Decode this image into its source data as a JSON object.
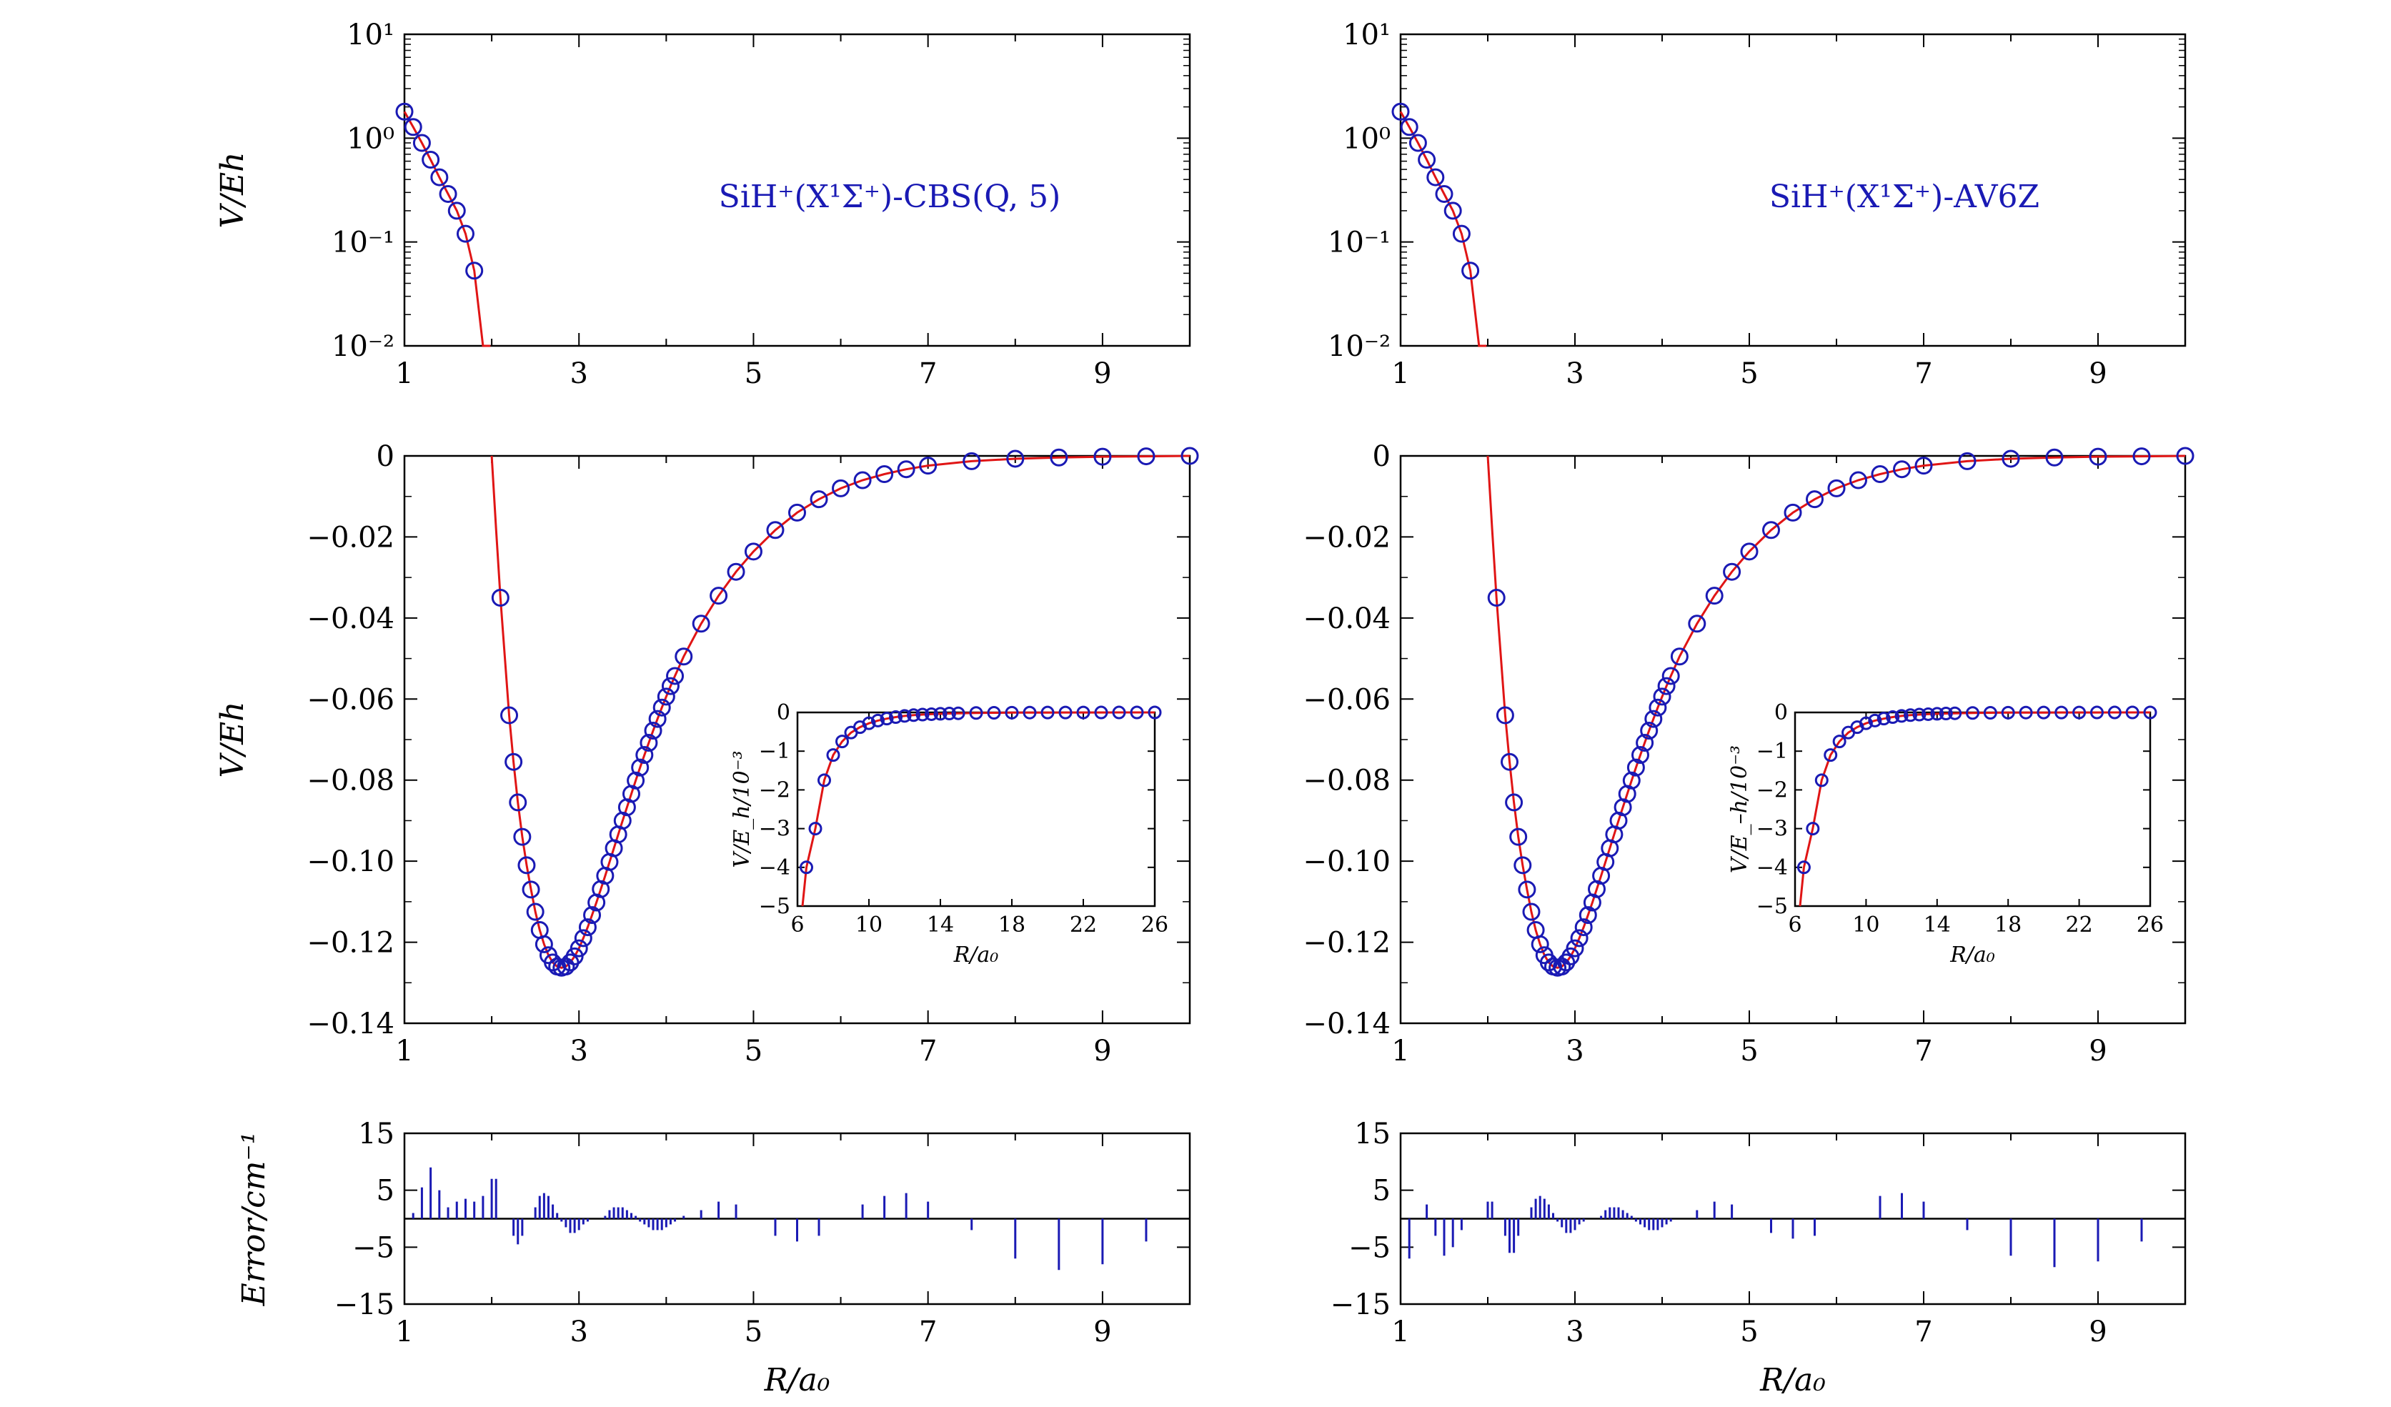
{
  "colors": {
    "curve": "#e01515",
    "points": "#1a1ab4",
    "error_bars": "#1a1ab4",
    "axes": "#000000"
  },
  "panels": [
    {
      "annotation": "SiH⁺(X¹Σ⁺)-CBS(Q, 5)"
    },
    {
      "annotation": "SiH⁺(X¹Σ⁺)-AV6Z"
    }
  ],
  "labels": {
    "top_ylabel": "V/E_h",
    "mid_ylabel": "V/E_h",
    "bottom_ylabel": "Error/cm⁻¹",
    "xlabel": "R/a₀",
    "inset_xlabel": "R/a₀",
    "inset_ylabel_left": "V/E_h/10⁻³",
    "inset_ylabel_right": "V/E_–h/10⁻³"
  },
  "ticks": {
    "main_x": [
      "1",
      "3",
      "5",
      "7",
      "9"
    ],
    "top_y": [
      "10¹",
      "10⁰",
      "10⁻¹",
      "10⁻²"
    ],
    "mid_y": [
      "0",
      "−0.02",
      "−0.04",
      "−0.06",
      "−0.08",
      "−0.10",
      "−0.12",
      "−0.14"
    ],
    "err_y": [
      "15",
      "5",
      "−5",
      "−15"
    ],
    "inset_x": [
      "6",
      "10",
      "14",
      "18",
      "22",
      "26"
    ],
    "inset_y": [
      "0",
      "−1",
      "−2",
      "−3",
      "−4",
      "−5"
    ]
  },
  "chart_data": [
    {
      "panel": "left-top",
      "type": "scatter",
      "title": "SiH⁺(X¹Σ⁺)-CBS(Q, 5)",
      "xlabel": "",
      "ylabel": "V/E_h",
      "xlim": [
        1,
        10
      ],
      "ylim": [
        0.01,
        10
      ],
      "yscale": "log",
      "x": [
        1.0,
        1.1,
        1.2,
        1.3,
        1.4,
        1.5,
        1.6,
        1.7,
        1.8,
        1.9
      ],
      "y": [
        1.8,
        1.28,
        0.9,
        0.62,
        0.42,
        0.29,
        0.2,
        0.12,
        0.053,
        0.01
      ]
    },
    {
      "panel": "left-middle",
      "type": "scatter",
      "xlabel": "",
      "ylabel": "V/E_h",
      "xlim": [
        1,
        10
      ],
      "ylim": [
        -0.14,
        0
      ],
      "x": [
        2.1,
        2.2,
        2.25,
        2.3,
        2.35,
        2.4,
        2.45,
        2.5,
        2.55,
        2.6,
        2.65,
        2.7,
        2.75,
        2.8,
        2.85,
        2.9,
        2.95,
        3.0,
        3.05,
        3.1,
        3.15,
        3.2,
        3.25,
        3.3,
        3.35,
        3.4,
        3.45,
        3.5,
        3.55,
        3.6,
        3.65,
        3.7,
        3.75,
        3.8,
        3.85,
        3.9,
        3.95,
        4.0,
        4.05,
        4.1,
        4.2,
        4.4,
        4.6,
        4.8,
        5.0,
        5.25,
        5.5,
        5.75,
        6.0,
        6.25,
        6.5,
        6.75,
        7.0,
        7.5,
        8.0,
        8.5,
        9.0,
        9.5,
        10.0
      ],
      "y": [
        -0.035,
        -0.064,
        -0.0755,
        -0.0855,
        -0.094,
        -0.101,
        -0.107,
        -0.1125,
        -0.117,
        -0.1205,
        -0.1232,
        -0.125,
        -0.126,
        -0.1263,
        -0.126,
        -0.125,
        -0.1235,
        -0.1215,
        -0.119,
        -0.1163,
        -0.1133,
        -0.1102,
        -0.1069,
        -0.1036,
        -0.1002,
        -0.0968,
        -0.0934,
        -0.09,
        -0.0867,
        -0.0834,
        -0.0801,
        -0.0769,
        -0.0738,
        -0.0708,
        -0.0678,
        -0.0649,
        -0.0621,
        -0.0594,
        -0.0568,
        -0.0543,
        -0.0495,
        -0.0414,
        -0.0345,
        -0.0286,
        -0.0236,
        -0.0183,
        -0.014,
        -0.0107,
        -0.008,
        -0.006,
        -0.0045,
        -0.0033,
        -0.0024,
        -0.0013,
        -0.0007,
        -0.0004,
        -0.0002,
        -0.0001,
        0.0
      ]
    },
    {
      "panel": "left-inset",
      "type": "scatter",
      "xlabel": "R/a₀",
      "ylabel": "V/E_h/10⁻³",
      "xlim": [
        6,
        26
      ],
      "ylim": [
        -5,
        0
      ],
      "x": [
        6.5,
        7.0,
        7.5,
        8.0,
        8.5,
        9.0,
        9.5,
        10.0,
        10.5,
        11.0,
        11.5,
        12.0,
        12.5,
        13.0,
        13.5,
        14.0,
        14.5,
        15.0,
        16.0,
        17.0,
        18.0,
        19.0,
        20.0,
        21.0,
        22.0,
        23.0,
        24.0,
        25.0,
        26.0
      ],
      "y": [
        -4.0,
        -3.0,
        -1.75,
        -1.1,
        -0.75,
        -0.52,
        -0.38,
        -0.28,
        -0.21,
        -0.16,
        -0.12,
        -0.09,
        -0.07,
        -0.055,
        -0.045,
        -0.035,
        -0.028,
        -0.022,
        -0.014,
        -0.009,
        -0.006,
        -0.004,
        -0.003,
        -0.002,
        -0.0015,
        -0.001,
        -0.0007,
        -0.0005,
        -0.0003
      ]
    },
    {
      "panel": "left-bottom",
      "type": "bar",
      "xlabel": "R/a₀",
      "ylabel": "Error/cm⁻¹",
      "xlim": [
        1,
        10
      ],
      "ylim": [
        -15,
        15
      ],
      "x": [
        1.1,
        1.2,
        1.3,
        1.4,
        1.5,
        1.6,
        1.7,
        1.8,
        1.9,
        2.0,
        2.05,
        2.25,
        2.3,
        2.35,
        2.5,
        2.55,
        2.6,
        2.65,
        2.7,
        2.75,
        2.8,
        2.85,
        2.9,
        2.95,
        3.0,
        3.05,
        3.1,
        3.3,
        3.35,
        3.4,
        3.45,
        3.5,
        3.55,
        3.6,
        3.65,
        3.7,
        3.75,
        3.8,
        3.85,
        3.9,
        3.95,
        4.0,
        4.05,
        4.1,
        4.2,
        4.4,
        4.6,
        4.8,
        5.25,
        5.5,
        5.75,
        6.25,
        6.5,
        6.75,
        7.0,
        7.5,
        8.0,
        8.5,
        9.0,
        9.5
      ],
      "y": [
        1,
        5.5,
        9,
        5,
        2,
        3,
        3.5,
        3,
        4,
        7,
        7,
        -3,
        -4.5,
        -3,
        2,
        4,
        4.5,
        4,
        2.5,
        1,
        -0.5,
        -1.5,
        -2.5,
        -2.5,
        -2,
        -1,
        -0.5,
        0.5,
        1.5,
        2,
        2,
        2,
        1.5,
        1,
        0.5,
        -0.5,
        -1,
        -1.5,
        -2,
        -2,
        -2,
        -1.5,
        -1,
        -0.5,
        0.5,
        1.5,
        3,
        2.5,
        -3,
        -4,
        -3,
        2.5,
        4,
        4.5,
        3,
        -2,
        -7,
        -9,
        -8,
        -4
      ]
    },
    {
      "panel": "right-top",
      "type": "scatter",
      "title": "SiH⁺(X¹Σ⁺)-AV6Z",
      "xlabel": "",
      "ylabel": "",
      "xlim": [
        1,
        10
      ],
      "ylim": [
        0.01,
        10
      ],
      "yscale": "log",
      "x": [
        1.0,
        1.1,
        1.2,
        1.3,
        1.4,
        1.5,
        1.6,
        1.7,
        1.8,
        1.9
      ],
      "y": [
        1.8,
        1.28,
        0.9,
        0.62,
        0.42,
        0.29,
        0.2,
        0.12,
        0.053,
        0.01
      ]
    },
    {
      "panel": "right-middle",
      "type": "scatter",
      "xlabel": "",
      "ylabel": "",
      "xlim": [
        1,
        10
      ],
      "ylim": [
        -0.14,
        0
      ],
      "x": [
        2.1,
        2.2,
        2.25,
        2.3,
        2.35,
        2.4,
        2.45,
        2.5,
        2.55,
        2.6,
        2.65,
        2.7,
        2.75,
        2.8,
        2.85,
        2.9,
        2.95,
        3.0,
        3.05,
        3.1,
        3.15,
        3.2,
        3.25,
        3.3,
        3.35,
        3.4,
        3.45,
        3.5,
        3.55,
        3.6,
        3.65,
        3.7,
        3.75,
        3.8,
        3.85,
        3.9,
        3.95,
        4.0,
        4.05,
        4.1,
        4.2,
        4.4,
        4.6,
        4.8,
        5.0,
        5.25,
        5.5,
        5.75,
        6.0,
        6.25,
        6.5,
        6.75,
        7.0,
        7.5,
        8.0,
        8.5,
        9.0,
        9.5,
        10.0
      ],
      "y": [
        -0.035,
        -0.064,
        -0.0755,
        -0.0855,
        -0.094,
        -0.101,
        -0.107,
        -0.1125,
        -0.117,
        -0.1205,
        -0.1232,
        -0.125,
        -0.126,
        -0.1263,
        -0.126,
        -0.125,
        -0.1235,
        -0.1215,
        -0.119,
        -0.1163,
        -0.1133,
        -0.1102,
        -0.1069,
        -0.1036,
        -0.1002,
        -0.0968,
        -0.0934,
        -0.09,
        -0.0867,
        -0.0834,
        -0.0801,
        -0.0769,
        -0.0738,
        -0.0708,
        -0.0678,
        -0.0649,
        -0.0621,
        -0.0594,
        -0.0568,
        -0.0543,
        -0.0495,
        -0.0414,
        -0.0345,
        -0.0286,
        -0.0236,
        -0.0183,
        -0.014,
        -0.0107,
        -0.008,
        -0.006,
        -0.0045,
        -0.0033,
        -0.0024,
        -0.0013,
        -0.0007,
        -0.0004,
        -0.0002,
        -0.0001,
        0.0
      ]
    },
    {
      "panel": "right-inset",
      "type": "scatter",
      "xlabel": "R/a₀",
      "ylabel": "V/E_–h/10⁻³",
      "xlim": [
        6,
        26
      ],
      "ylim": [
        -5,
        0
      ],
      "x": [
        6.5,
        7.0,
        7.5,
        8.0,
        8.5,
        9.0,
        9.5,
        10.0,
        10.5,
        11.0,
        11.5,
        12.0,
        12.5,
        13.0,
        13.5,
        14.0,
        14.5,
        15.0,
        16.0,
        17.0,
        18.0,
        19.0,
        20.0,
        21.0,
        22.0,
        23.0,
        24.0,
        25.0,
        26.0
      ],
      "y": [
        -4.0,
        -3.0,
        -1.75,
        -1.1,
        -0.75,
        -0.52,
        -0.38,
        -0.28,
        -0.21,
        -0.16,
        -0.12,
        -0.09,
        -0.07,
        -0.055,
        -0.045,
        -0.035,
        -0.028,
        -0.022,
        -0.014,
        -0.009,
        -0.006,
        -0.004,
        -0.003,
        -0.002,
        -0.0015,
        -0.001,
        -0.0007,
        -0.0005,
        -0.0003
      ]
    },
    {
      "panel": "right-bottom",
      "type": "bar",
      "xlabel": "R/a₀",
      "ylabel": "",
      "xlim": [
        1,
        10
      ],
      "ylim": [
        -15,
        15
      ],
      "x": [
        1.1,
        1.3,
        1.4,
        1.5,
        1.6,
        1.7,
        2.0,
        2.05,
        2.2,
        2.25,
        2.3,
        2.35,
        2.5,
        2.55,
        2.6,
        2.65,
        2.7,
        2.75,
        2.8,
        2.85,
        2.9,
        2.95,
        3.0,
        3.05,
        3.1,
        3.3,
        3.35,
        3.4,
        3.45,
        3.5,
        3.55,
        3.6,
        3.65,
        3.7,
        3.75,
        3.8,
        3.85,
        3.9,
        3.95,
        4.0,
        4.05,
        4.1,
        4.4,
        4.6,
        4.8,
        5.25,
        5.5,
        5.75,
        6.5,
        6.75,
        7.0,
        7.5,
        8.0,
        8.5,
        9.0,
        9.5
      ],
      "y": [
        -7,
        2.5,
        -3,
        -6.5,
        -5,
        -2,
        3,
        3,
        -3,
        -6,
        -6,
        -3,
        2,
        3.5,
        4,
        3.5,
        2.5,
        1,
        -0.5,
        -1.5,
        -2.5,
        -2.5,
        -2,
        -1,
        -0.5,
        0.5,
        1.5,
        2,
        2,
        2,
        1.5,
        1,
        0.5,
        -0.5,
        -1,
        -1.5,
        -2,
        -2,
        -2,
        -1.5,
        -1,
        -0.5,
        1.5,
        3,
        2.5,
        -2.5,
        -3.5,
        -3,
        4,
        4.5,
        3,
        -2,
        -6.5,
        -8.5,
        -7.5,
        -4
      ]
    }
  ]
}
